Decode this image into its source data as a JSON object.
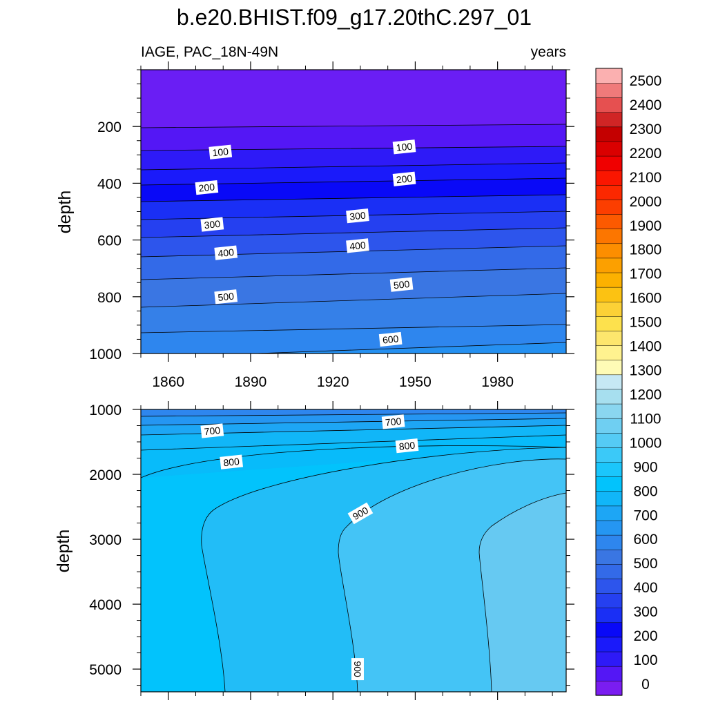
{
  "chart_data": {
    "type": "contour",
    "title": "b.e20.BHIST.f09_g17.20thC.297_01",
    "variable_label": "IAGE, PAC_18N-49N",
    "units_label": "years",
    "x_ticks": [
      "1860",
      "1890",
      "1920",
      "1950",
      "1980"
    ],
    "x_tick_values": [
      1860,
      1890,
      1920,
      1950,
      1980
    ],
    "xlim": [
      1850,
      2005
    ],
    "panels": [
      {
        "name": "upper",
        "ylabel": "depth",
        "ylim": [
          0,
          1000
        ],
        "y_ticks": [
          "200",
          "400",
          "600",
          "800",
          "1000"
        ],
        "y_tick_values": [
          200,
          400,
          600,
          800,
          1000
        ],
        "contour_labels": [
          {
            "text": "100",
            "year": 1879,
            "depth": 290
          },
          {
            "text": "100",
            "year": 1946,
            "depth": 272
          },
          {
            "text": "200",
            "year": 1874,
            "depth": 415
          },
          {
            "text": "200",
            "year": 1946,
            "depth": 385
          },
          {
            "text": "300",
            "year": 1876,
            "depth": 545
          },
          {
            "text": "300",
            "year": 1929,
            "depth": 515
          },
          {
            "text": "400",
            "year": 1881,
            "depth": 645
          },
          {
            "text": "400",
            "year": 1929,
            "depth": 620
          },
          {
            "text": "500",
            "year": 1881,
            "depth": 800
          },
          {
            "text": "500",
            "year": 1945,
            "depth": 757
          },
          {
            "text": "600",
            "year": 1941,
            "depth": 950
          }
        ]
      },
      {
        "name": "lower",
        "ylabel": "depth",
        "ylim": [
          1000,
          5350
        ],
        "y_ticks": [
          "1000",
          "2000",
          "3000",
          "4000",
          "5000"
        ],
        "y_tick_values": [
          1000,
          2000,
          3000,
          4000,
          5000
        ],
        "contour_labels": [
          {
            "text": "700",
            "year": 1876,
            "depth": 1330
          },
          {
            "text": "700",
            "year": 1942,
            "depth": 1190
          },
          {
            "text": "800",
            "year": 1883,
            "depth": 1810
          },
          {
            "text": "800",
            "year": 1947,
            "depth": 1560
          },
          {
            "text": "900",
            "year": 1930,
            "depth": 2600
          },
          {
            "text": "900",
            "year": 1929,
            "depth": 5000
          }
        ]
      }
    ],
    "colorbar": {
      "labels": [
        "0",
        "100",
        "200",
        "300",
        "400",
        "500",
        "600",
        "700",
        "800",
        "900",
        "1000",
        "1100",
        "1200",
        "1300",
        "1400",
        "1500",
        "1600",
        "1700",
        "1800",
        "1900",
        "2000",
        "2100",
        "2200",
        "2300",
        "2400",
        "2500"
      ],
      "colors": [
        "#7a1df0",
        "#5417f5",
        "#2e1af7",
        "#1a1afa",
        "#0909f7",
        "#1a2ff5",
        "#2540f0",
        "#2d55ec",
        "#336ae8",
        "#3a76e3",
        "#2e86ee",
        "#2596f2",
        "#1da6f5",
        "#11b6f8",
        "#02c3fc",
        "#1bc6fb",
        "#3bc9f8",
        "#55cbf5",
        "#6fcff2",
        "#8ad6f0",
        "#a7dfef",
        "#c6e8f4",
        "#fefbb6",
        "#fff28f",
        "#fde66d",
        "#fde14d",
        "#fcd136",
        "#fcc212",
        "#fcb100",
        "#fca000",
        "#fc8e00",
        "#fc7600",
        "#fc5a00",
        "#fc3e00",
        "#fc2800",
        "#fa1600",
        "#f00000",
        "#da0000",
        "#c40000",
        "#d02525",
        "#e65050",
        "#f07a7a",
        "#fbb0b0"
      ]
    }
  }
}
